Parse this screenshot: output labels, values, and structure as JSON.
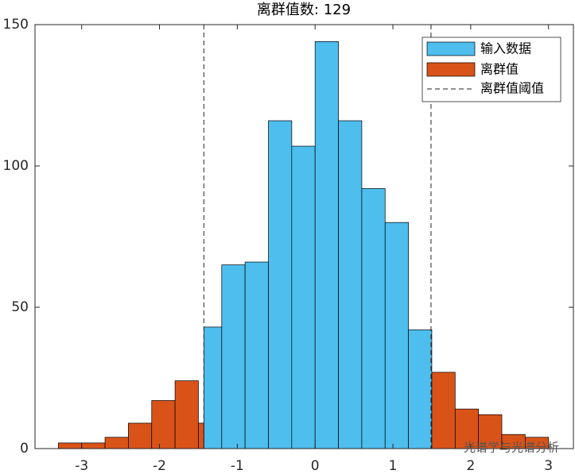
{
  "chart_data": {
    "type": "histogram",
    "title": "离群值数: 129",
    "xlim": [
      -3.6,
      3.32
    ],
    "ylim": [
      0,
      150
    ],
    "xticks": [
      -3,
      -2,
      -1,
      0,
      1,
      2,
      3
    ],
    "yticks": [
      0,
      50,
      100,
      150
    ],
    "legend": "northeast",
    "series": [
      {
        "name": "输入数据",
        "color": "#4dbeee",
        "bins": [
          -1.43,
          -1.2,
          -0.9,
          -0.6,
          -0.3,
          0,
          0.3,
          0.6,
          0.9,
          1.2,
          1.5
        ],
        "values": [
          43,
          65,
          66,
          116,
          107,
          144,
          116,
          92,
          80,
          42
        ]
      },
      {
        "name": "离群值",
        "color": "#d95319",
        "bins": [
          -3.3,
          -3.0,
          -2.7,
          -2.4,
          -2.1,
          -1.8,
          -1.5,
          -1.43,
          1.5,
          1.8,
          2.1,
          2.4,
          2.7,
          3.0
        ],
        "values": [
          2,
          2,
          4,
          9,
          17,
          24,
          9,
          0,
          27,
          14,
          12,
          5,
          4
        ]
      }
    ],
    "threshold": {
      "name": "离群值阈值",
      "values": [
        -1.43,
        1.49
      ]
    },
    "watermark": "光谱学与光谱分析"
  }
}
